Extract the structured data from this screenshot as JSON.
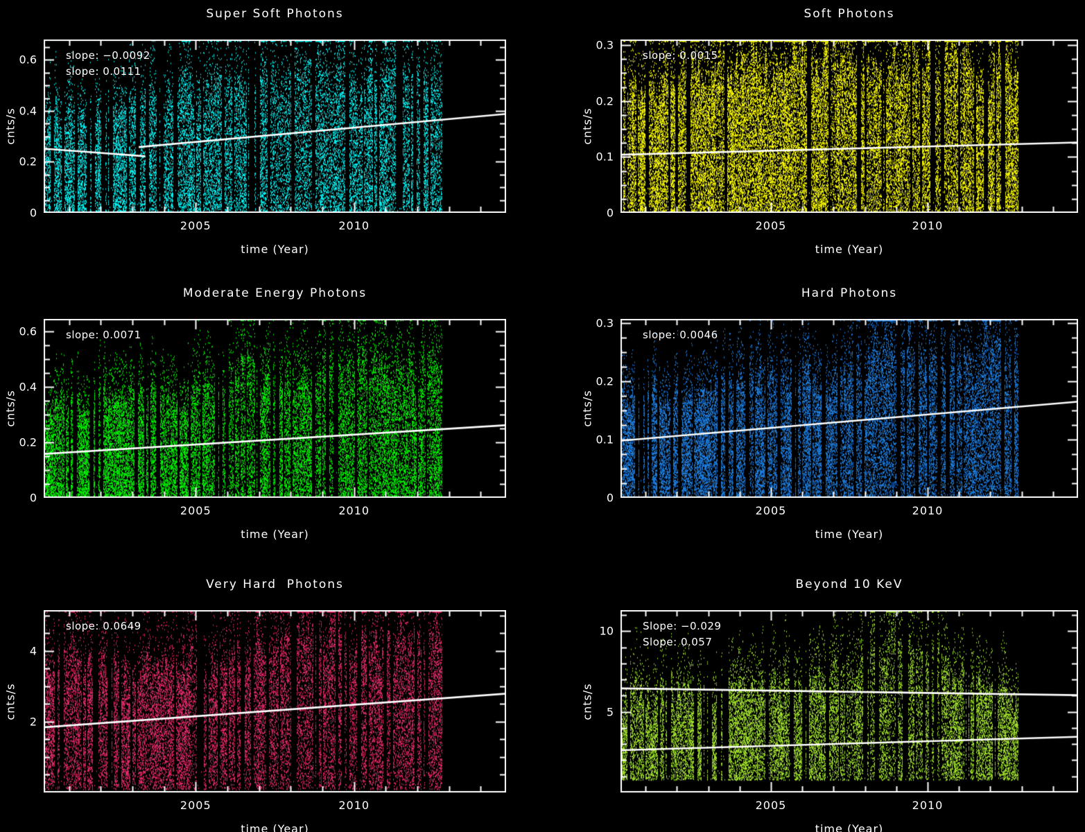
{
  "figure": {
    "background": "#000000",
    "text_color": "#ffffff",
    "trend_line_color": "#ffffff"
  },
  "chart_data": [
    {
      "type": "scatter",
      "title": "Super Soft Photons",
      "xlabel": "time (Year)",
      "ylabel": "cnts/s",
      "color": "#00ffff",
      "xlim": [
        2000.2,
        2014.8
      ],
      "ylim": [
        0,
        0.68
      ],
      "xticks": [
        2005,
        2010
      ],
      "xtick_labels": [
        "2005",
        "2010"
      ],
      "yticks": [
        0,
        0.2,
        0.4,
        0.6
      ],
      "ytick_labels": [
        "0",
        "0.2",
        "0.4",
        "0.6"
      ],
      "y_minor_step": 0.05,
      "grid": "off",
      "legend": "none",
      "annotations": [
        "slope: −0.0092",
        "slope: 0.0111"
      ],
      "trend_lines": [
        {
          "slope": -0.0092,
          "x": [
            2000.2,
            2003.4
          ],
          "y": [
            0.252,
            0.222
          ]
        },
        {
          "slope": 0.0111,
          "x": [
            2003.2,
            2014.8
          ],
          "y": [
            0.258,
            0.388
          ]
        }
      ],
      "scatter_band": {
        "x_data_range": [
          2000.2,
          2012.8
        ],
        "typical_y_range": [
          0,
          0.6
        ]
      },
      "render": {
        "seed": 7,
        "gap_prob": 0.07,
        "pts_per_col": 55,
        "env_start": 0.4,
        "env_end": 0.6,
        "floor": 0,
        "pow": 1.1,
        "tail_frac": 0.07,
        "x_end": 2012.8,
        "bump": {
          "center": 2008.0,
          "width": 3.0,
          "amp": 0.1
        }
      }
    },
    {
      "type": "scatter",
      "title": "Soft Photons",
      "xlabel": "time (Year)",
      "ylabel": "cnts/s",
      "color": "#ffff00",
      "xlim": [
        2000.2,
        2014.8
      ],
      "ylim": [
        0,
        0.31
      ],
      "xticks": [
        2005,
        2010
      ],
      "xtick_labels": [
        "2005",
        "2010"
      ],
      "yticks": [
        0,
        0.1,
        0.2,
        0.3
      ],
      "ytick_labels": [
        "0",
        "0.1",
        "0.2",
        "0.3"
      ],
      "y_minor_step": 0.025,
      "grid": "off",
      "legend": "none",
      "annotations": [
        "slope: 0.0015"
      ],
      "trend_lines": [
        {
          "slope": 0.0015,
          "x": [
            2000.2,
            2014.8
          ],
          "y": [
            0.104,
            0.126
          ]
        }
      ],
      "scatter_band": {
        "x_data_range": [
          2000.2,
          2012.9
        ],
        "typical_y_range": [
          0,
          0.3
        ]
      },
      "render": {
        "seed": 13,
        "gap_prob": 0.05,
        "pts_per_col": 85,
        "env_start": 0.26,
        "env_end": 0.3,
        "floor": 0,
        "pow": 1.0,
        "tail_frac": 0.05,
        "x_end": 2012.9,
        "bump": {
          "center": 2008.0,
          "width": 3.0,
          "amp": 0.0
        }
      }
    },
    {
      "type": "scatter",
      "title": "Moderate Energy Photons",
      "xlabel": "time (Year)",
      "ylabel": "cnts/s",
      "color": "#00ff00",
      "xlim": [
        2000.2,
        2014.8
      ],
      "ylim": [
        0,
        0.645
      ],
      "xticks": [
        2005,
        2010
      ],
      "xtick_labels": [
        "2005",
        "2010"
      ],
      "yticks": [
        0,
        0.2,
        0.4,
        0.6
      ],
      "ytick_labels": [
        "0",
        "0.2",
        "0.4",
        "0.6"
      ],
      "y_minor_step": 0.05,
      "grid": "off",
      "legend": "none",
      "annotations": [
        "slope: 0.0071"
      ],
      "trend_lines": [
        {
          "slope": 0.0071,
          "x": [
            2000.2,
            2014.8
          ],
          "y": [
            0.158,
            0.262
          ]
        }
      ],
      "scatter_band": {
        "x_data_range": [
          2000.2,
          2012.8
        ],
        "typical_y_range": [
          0,
          0.5
        ]
      },
      "render": {
        "seed": 23,
        "gap_prob": 0.07,
        "pts_per_col": 62,
        "env_start": 0.36,
        "env_end": 0.5,
        "floor": 0,
        "pow": 1.1,
        "tail_frac": 0.07,
        "x_end": 2012.8,
        "bump": {
          "center": 2008.5,
          "width": 3.0,
          "amp": 0.06
        }
      }
    },
    {
      "type": "scatter",
      "title": "Hard Photons",
      "xlabel": "time (Year)",
      "ylabel": "cnts/s",
      "color": "#1e82e6",
      "xlim": [
        2000.2,
        2014.8
      ],
      "ylim": [
        0,
        0.307
      ],
      "xticks": [
        2005,
        2010
      ],
      "xtick_labels": [
        "2005",
        "2010"
      ],
      "yticks": [
        0,
        0.1,
        0.2,
        0.3
      ],
      "ytick_labels": [
        "0",
        "0.1",
        "0.2",
        "0.3"
      ],
      "y_minor_step": 0.025,
      "grid": "off",
      "legend": "none",
      "annotations": [
        "slope: 0.0046"
      ],
      "trend_lines": [
        {
          "slope": 0.0046,
          "x": [
            2000.2,
            2014.8
          ],
          "y": [
            0.098,
            0.165
          ]
        }
      ],
      "scatter_band": {
        "x_data_range": [
          2000.2,
          2012.9
        ],
        "typical_y_range": [
          0,
          0.28
        ]
      },
      "render": {
        "seed": 31,
        "gap_prob": 0.06,
        "pts_per_col": 70,
        "env_start": 0.17,
        "env_end": 0.29,
        "floor": 0,
        "pow": 1.0,
        "tail_frac": 0.07,
        "x_end": 2012.9,
        "bump": {
          "center": 2008.0,
          "width": 3.0,
          "amp": 0.02
        }
      }
    },
    {
      "type": "scatter",
      "title": "Very Hard  Photons",
      "xlabel": "time (Year)",
      "ylabel": "cnts/s",
      "color": "#e82b6e",
      "xlim": [
        2000.2,
        2014.8
      ],
      "ylim": [
        0,
        5.15
      ],
      "xticks": [
        2005,
        2010
      ],
      "xtick_labels": [
        "2005",
        "2010"
      ],
      "yticks": [
        2,
        4
      ],
      "ytick_labels": [
        "2",
        "4"
      ],
      "y_minor_step": 0.5,
      "grid": "off",
      "legend": "none",
      "annotations": [
        "slope: 0.0649"
      ],
      "trend_lines": [
        {
          "slope": 0.0649,
          "x": [
            2000.2,
            2014.8
          ],
          "y": [
            1.84,
            2.79
          ]
        }
      ],
      "scatter_band": {
        "x_data_range": [
          2000.2,
          2012.8
        ],
        "typical_y_range": [
          0.3,
          4.8
        ]
      },
      "render": {
        "seed": 41,
        "gap_prob": 0.07,
        "pts_per_col": 62,
        "env_start": 3.6,
        "env_end": 4.6,
        "floor": 0.1,
        "pow": 0.9,
        "tail_frac": 0.06,
        "x_end": 2012.8,
        "bump": {
          "center": 2008.0,
          "width": 3.0,
          "amp": 0.7
        }
      }
    },
    {
      "type": "scatter",
      "title": "Beyond 10 KeV",
      "xlabel": "time (Year)",
      "ylabel": "cnts/s",
      "color": "#a6e62e",
      "xlim": [
        2000.2,
        2014.8
      ],
      "ylim": [
        0,
        11.3
      ],
      "xticks": [
        2005,
        2010
      ],
      "xtick_labels": [
        "2005",
        "2010"
      ],
      "yticks": [
        5,
        10
      ],
      "ytick_labels": [
        "5",
        "10"
      ],
      "y_minor_step": 1,
      "grid": "off",
      "legend": "none",
      "annotations": [
        "Slope: −0.029",
        "Slope: 0.057"
      ],
      "trend_lines": [
        {
          "slope": -0.029,
          "x": [
            2000.2,
            2014.8
          ],
          "y": [
            6.45,
            6.03
          ]
        },
        {
          "slope": 0.057,
          "x": [
            2000.2,
            2014.8
          ],
          "y": [
            2.62,
            3.45
          ]
        }
      ],
      "scatter_band": {
        "x_data_range": [
          2000.2,
          2012.9
        ],
        "typical_y_range": [
          1.0,
          10.5
        ]
      },
      "render": {
        "seed": 53,
        "gap_prob": 0.08,
        "pts_per_col": 55,
        "env_start": 6.6,
        "env_end": 7.0,
        "floor": 0.8,
        "pow": 1.0,
        "tail_frac": 0.07,
        "x_end": 2012.9,
        "bump": {
          "center": 2008.8,
          "width": 2.2,
          "amp": 3.0
        }
      }
    }
  ]
}
